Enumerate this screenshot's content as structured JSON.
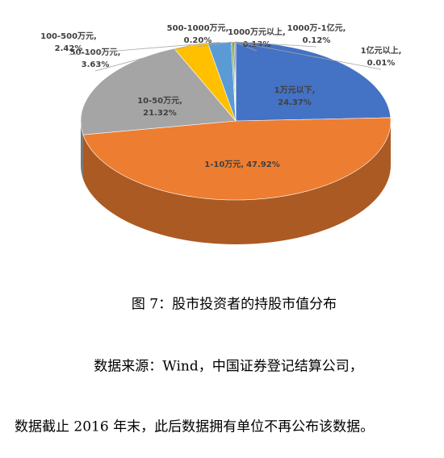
{
  "chart_data": {
    "type": "pie3d",
    "categories": [
      "1万元以下,",
      "1-10万元,",
      "10-50万元,",
      "50-100万元,",
      "100-500万元,",
      "500-1000万元,",
      "1000万元以上,",
      "1000万-1亿元,",
      "1亿元以上,"
    ],
    "values": [
      24.37,
      47.92,
      21.32,
      3.63,
      2.42,
      0.2,
      0.13,
      0.12,
      0.01
    ],
    "value_labels": [
      "24.37%",
      "47.92%",
      "21.32%",
      "3.63%",
      "2.42%",
      "0.20%",
      "0.13%",
      "0.12%",
      "0.01%"
    ],
    "colors": [
      "#4472c4",
      "#ed7d31",
      "#a5a5a5",
      "#ffc000",
      "#5b9bd5",
      "#70ad47",
      "#264478",
      "#9e480e",
      "#636363"
    ]
  },
  "captions": [
    "图 7：股市投资者的持股市值分布",
    "数据来源：Wind，中国证券登记结算公司，",
    "数据截止 2016 年末，此后数据拥有单位不再公布该数据。"
  ]
}
